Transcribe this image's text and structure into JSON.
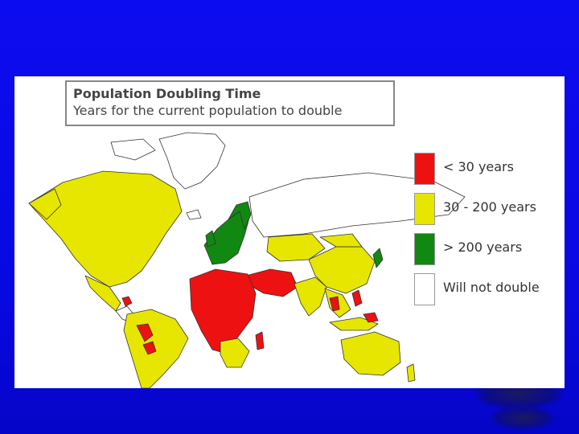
{
  "title": "Population Doubling Time",
  "subtitle": "Years for the current population to double",
  "legend": [
    {
      "label": "< 30 years",
      "color": "#ee1111"
    },
    {
      "label": "30 - 200 years",
      "color": "#e6e600"
    },
    {
      "label": "> 200 years",
      "color": "#118811"
    },
    {
      "label": "Will not double",
      "color": "#ffffff"
    }
  ],
  "colors": {
    "slide_background": "#0a0ae6",
    "map_background": "#ffffff",
    "land_outline": "#333333"
  }
}
